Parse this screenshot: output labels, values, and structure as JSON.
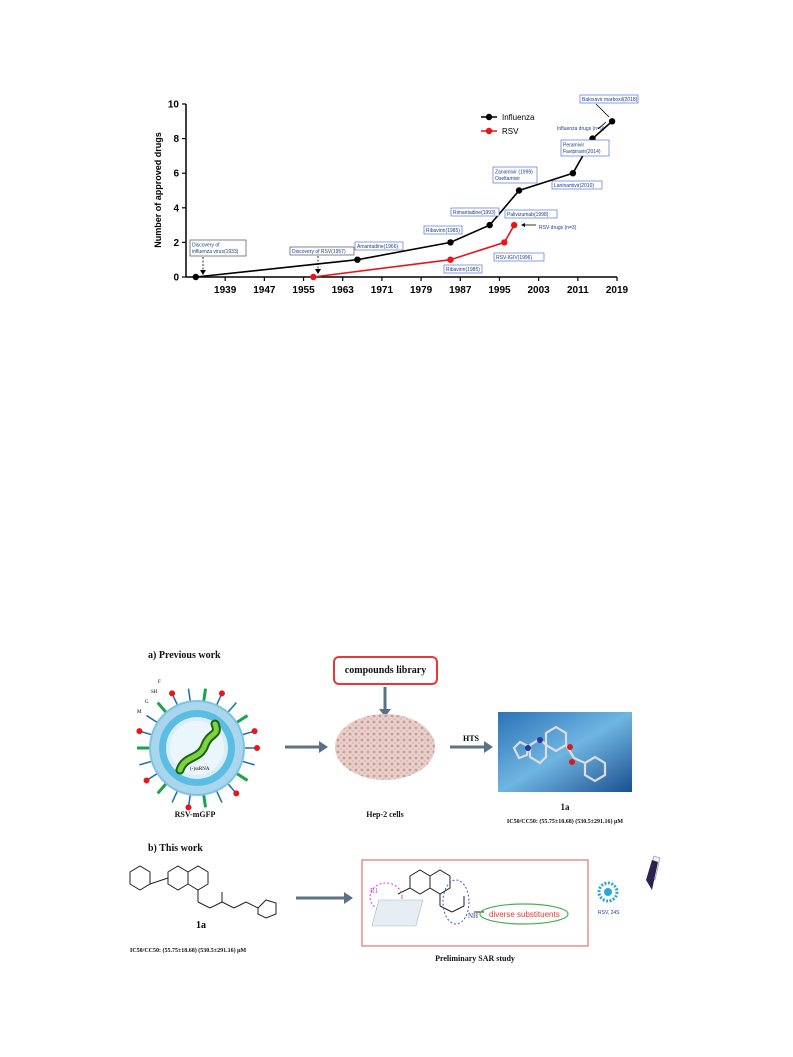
{
  "chart_data": {
    "type": "line",
    "xlabel": "",
    "ylabel": "Number of approved drugs",
    "xlim": [
      1931,
      2019
    ],
    "ylim": [
      0,
      10
    ],
    "x_ticks": [
      "1939",
      "1947",
      "1955",
      "1963",
      "1971",
      "1979",
      "1987",
      "1995",
      "2003",
      "2011",
      "2019"
    ],
    "y_ticks": [
      "0",
      "2",
      "4",
      "6",
      "8",
      "10"
    ],
    "legend_position": "top-right",
    "series": [
      {
        "name": "Influenza",
        "color": "#000000",
        "x": [
          1933,
          1966,
          1985,
          1993,
          1999,
          2010,
          2014,
          2018
        ],
        "y": [
          0,
          1,
          2,
          3,
          5,
          6,
          8,
          9
        ]
      },
      {
        "name": "RSV",
        "color": "#e8151b",
        "x": [
          1957,
          1985,
          1996,
          1998
        ],
        "y": [
          0,
          1,
          2,
          3
        ]
      }
    ],
    "annotations": [
      "Discovery of influenza virus(1933)",
      "Discovery of RSV(1957)",
      "Amantadine(1966)",
      "Ribavirin(1985)",
      "Rimantadine(1993)",
      "Zanamivir (1999) Oseltamivir",
      "Palivizumab(1998)",
      "RSV drugs (n=3)",
      "Ribavirin(1985)",
      "RSV-IGIV(1996)",
      "Laninamivir(2010)",
      "Peramivir Favipiravir(2014)",
      "Influenza drugs (n=9)",
      "Baloxavir marboxil(2018)"
    ]
  },
  "scheme": {
    "previous_title": "a) Previous work",
    "library_label": "compounds library",
    "virus_label": "RSV-mGFP",
    "virus_parts": [
      "F",
      "SH",
      "G",
      "M",
      "(-)ssRNA"
    ],
    "cells_label": "Hep-2 cells",
    "hts_label": "HTS",
    "compound_label": "1a",
    "compound_ic50": "IC50/CC50: (55.75±18.68) (530.5±291.16) μM",
    "this_title": "b) This work",
    "compound2_label": "1a",
    "compound2_ic50": "IC50/CC50: (55.75±18.68) (530.5±291.16) μM",
    "r1": "R1",
    "r2": "R2",
    "nh_label": "NH",
    "diverse_label": "diverse substituents",
    "sar_label": "Preliminary SAR study",
    "assay_label": "RSV, 24S"
  }
}
